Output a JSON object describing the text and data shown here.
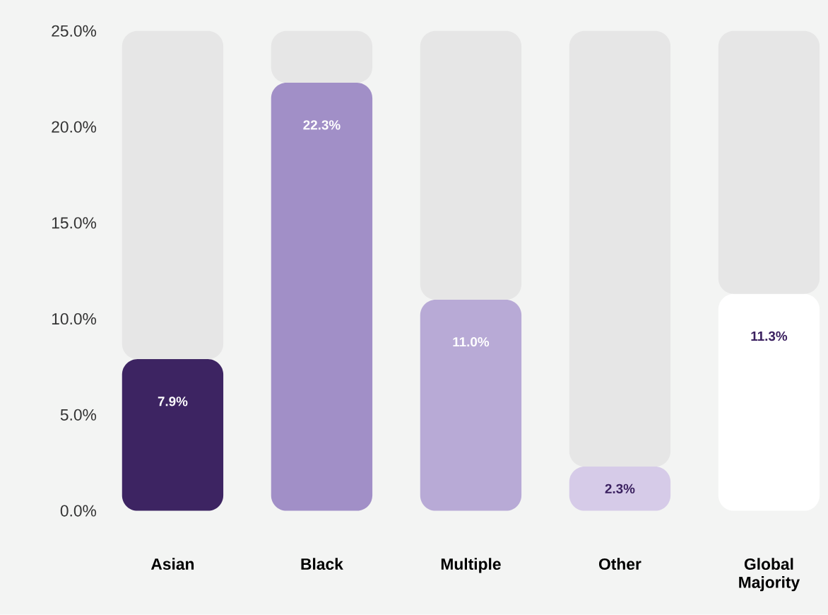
{
  "chart_data": {
    "type": "bar",
    "categories": [
      "Asian",
      "Black",
      "Multiple",
      "Other",
      "Global Majority"
    ],
    "stacked": true,
    "series": [
      {
        "colors": [
          "#3d2462",
          "#a18fc7",
          "#b8aad6",
          "#d6cbe8",
          "#ffffff"
        ],
        "values": [
          7.9,
          22.3,
          11.0,
          2.3,
          11.3
        ],
        "value_labels": [
          "7.9%",
          "22.3%",
          "11.0%",
          "2.3%",
          "11.3%"
        ]
      },
      {
        "color": "#e6e6e6",
        "values": [
          17.1,
          2.7,
          14.0,
          22.7,
          13.7
        ]
      }
    ],
    "ylim": [
      0,
      25
    ],
    "yticks": [
      {
        "value": 0,
        "label": "0.0%"
      },
      {
        "value": 5,
        "label": "5.0%"
      },
      {
        "value": 10,
        "label": "10.0%"
      },
      {
        "value": 15,
        "label": "15.0%"
      },
      {
        "value": 20,
        "label": "20.0%"
      },
      {
        "value": 25,
        "label": "25.0%"
      }
    ]
  }
}
